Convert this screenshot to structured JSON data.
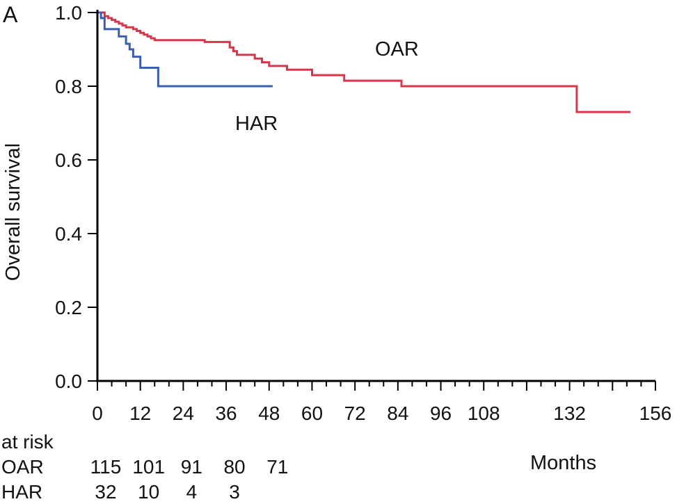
{
  "panel_label": "A",
  "chart_data": {
    "type": "line",
    "step": true,
    "ylabel": "Overall survival",
    "xlabel": "Months",
    "xlim": [
      0,
      156
    ],
    "ylim": [
      0,
      1
    ],
    "grid": false,
    "x_ticks": [
      0,
      12,
      24,
      36,
      48,
      60,
      72,
      84,
      96,
      108,
      132,
      156
    ],
    "y_ticks": [
      "0.0",
      "0.2",
      "0.4",
      "0.6",
      "0.8",
      "1.0"
    ],
    "series": [
      {
        "name": "OAR",
        "color": "#d9344a",
        "x": [
          0,
          2,
          3,
          4,
          5,
          6,
          7,
          8,
          10,
          11,
          12,
          13,
          14,
          15,
          16,
          30,
          37,
          38,
          39,
          44,
          46,
          48,
          53,
          60,
          69,
          85,
          134,
          149
        ],
        "y": [
          1.0,
          0.99,
          0.985,
          0.98,
          0.975,
          0.97,
          0.965,
          0.96,
          0.955,
          0.95,
          0.945,
          0.94,
          0.935,
          0.93,
          0.925,
          0.92,
          0.905,
          0.895,
          0.885,
          0.875,
          0.865,
          0.855,
          0.845,
          0.83,
          0.815,
          0.8,
          0.73,
          0.73
        ]
      },
      {
        "name": "HAR",
        "color": "#3b5fb0",
        "x": [
          0,
          1,
          2,
          6,
          8,
          9,
          10,
          12,
          17,
          49
        ],
        "y": [
          1.0,
          0.985,
          0.955,
          0.935,
          0.915,
          0.9,
          0.88,
          0.85,
          0.8,
          0.8
        ]
      }
    ],
    "annotations": [
      "OAR",
      "HAR"
    ]
  },
  "at_risk": {
    "title": "at risk",
    "rows": [
      {
        "label": "OAR",
        "values": [
          "115",
          "101",
          "91",
          "80",
          "71"
        ]
      },
      {
        "label": "HAR",
        "values": [
          "32",
          "10",
          "4",
          "3"
        ]
      }
    ]
  }
}
